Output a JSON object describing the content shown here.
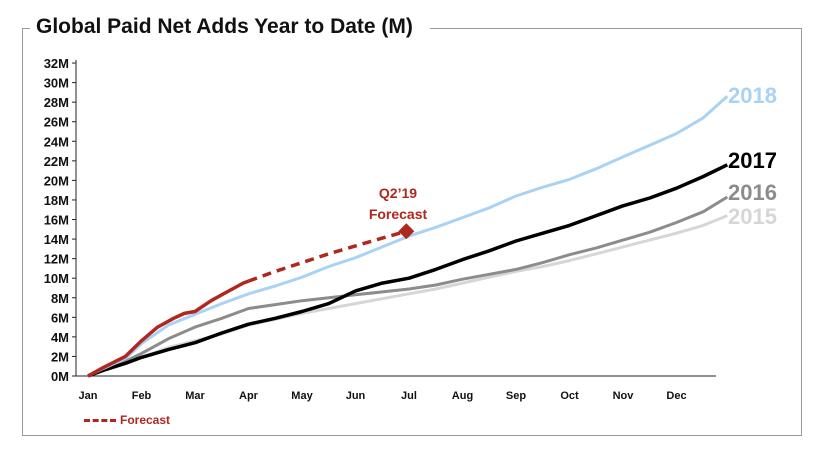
{
  "chart_data": {
    "type": "line",
    "title": "Global Paid Net Adds Year to Date (M)",
    "xlabel": "",
    "ylabel": "",
    "ylim": [
      0,
      32
    ],
    "y_ticks": [
      "0M",
      "2M",
      "4M",
      "6M",
      "8M",
      "10M",
      "12M",
      "14M",
      "16M",
      "18M",
      "20M",
      "22M",
      "24M",
      "26M",
      "28M",
      "30M",
      "32M"
    ],
    "x_ticks": [
      "Jan",
      "Feb",
      "Mar",
      "Apr",
      "May",
      "Jun",
      "Jul",
      "Aug",
      "Sep",
      "Oct",
      "Nov",
      "Dec"
    ],
    "grid": false,
    "colors": {
      "2018": "#a9d2f4",
      "2017": "#000000",
      "2016": "#8c8c8c",
      "2015": "#d6d6d6",
      "forecast": "#b0271f"
    },
    "series": [
      {
        "name": "2015",
        "x": [
          0,
          0.3,
          0.7,
          1.0,
          1.5,
          2.0,
          2.5,
          3.0,
          3.5,
          4.0,
          4.5,
          5.0,
          5.5,
          6.0,
          6.5,
          7.0,
          7.5,
          8.0,
          8.5,
          9.0,
          9.5,
          10.0,
          10.5,
          11.0,
          11.5,
          11.95
        ],
        "y": [
          0,
          0.6,
          1.3,
          1.9,
          2.9,
          3.6,
          4.3,
          5.2,
          5.8,
          6.4,
          6.9,
          7.4,
          7.9,
          8.4,
          8.9,
          9.5,
          10.1,
          10.7,
          11.2,
          11.8,
          12.5,
          13.2,
          13.9,
          14.6,
          15.4,
          16.4
        ]
      },
      {
        "name": "2016",
        "x": [
          0,
          0.3,
          0.7,
          1.0,
          1.5,
          2.0,
          2.5,
          3.0,
          3.5,
          4.0,
          4.5,
          5.0,
          5.5,
          6.0,
          6.5,
          7.0,
          7.5,
          8.0,
          8.5,
          9.0,
          9.5,
          10.0,
          10.5,
          11.0,
          11.5,
          11.95
        ],
        "y": [
          0,
          0.8,
          1.5,
          2.3,
          3.8,
          5.0,
          5.9,
          6.9,
          7.3,
          7.7,
          8.0,
          8.3,
          8.6,
          8.9,
          9.3,
          9.9,
          10.4,
          10.9,
          11.6,
          12.4,
          13.1,
          13.9,
          14.7,
          15.7,
          16.8,
          18.3
        ]
      },
      {
        "name": "2017",
        "x": [
          0,
          0.3,
          0.7,
          1.0,
          1.5,
          2.0,
          2.5,
          3.0,
          3.5,
          4.0,
          4.5,
          5.0,
          5.5,
          6.0,
          6.5,
          7.0,
          7.5,
          8.0,
          8.5,
          9.0,
          9.5,
          10.0,
          10.5,
          11.0,
          11.5,
          11.95
        ],
        "y": [
          0,
          0.6,
          1.3,
          1.9,
          2.7,
          3.4,
          4.4,
          5.3,
          5.9,
          6.6,
          7.4,
          8.7,
          9.5,
          10.0,
          10.9,
          11.9,
          12.8,
          13.8,
          14.6,
          15.4,
          16.4,
          17.4,
          18.2,
          19.2,
          20.4,
          21.6
        ]
      },
      {
        "name": "2018",
        "x": [
          0,
          0.3,
          0.7,
          1.0,
          1.5,
          2.0,
          2.5,
          3.0,
          3.5,
          4.0,
          4.5,
          5.0,
          5.5,
          6.0,
          6.5,
          7.0,
          7.5,
          8.0,
          8.5,
          9.0,
          9.5,
          10.0,
          10.5,
          11.0,
          11.5,
          11.95
        ],
        "y": [
          0,
          0.8,
          1.8,
          3.3,
          5.2,
          6.3,
          7.4,
          8.4,
          9.2,
          10.1,
          11.2,
          12.1,
          13.2,
          14.3,
          15.2,
          16.2,
          17.2,
          18.4,
          19.3,
          20.1,
          21.2,
          22.4,
          23.6,
          24.8,
          26.4,
          28.6
        ]
      },
      {
        "name": "2019",
        "x": [
          0,
          0.3,
          0.7,
          1.0,
          1.3,
          1.6,
          1.8,
          2.0,
          2.3,
          2.6,
          2.9,
          3.0
        ],
        "y": [
          0,
          0.9,
          2.0,
          3.6,
          5.0,
          5.9,
          6.4,
          6.6,
          7.7,
          8.6,
          9.5,
          9.7
        ]
      },
      {
        "name": "Forecast",
        "x": [
          3.0,
          3.5,
          4.0,
          4.5,
          5.0,
          5.5,
          5.95
        ],
        "y": [
          9.7,
          10.7,
          11.6,
          12.5,
          13.3,
          14.1,
          14.8
        ]
      }
    ],
    "end_labels": [
      "2018",
      "2017",
      "2016",
      "2015"
    ],
    "annotation": {
      "line1": "Q2’19",
      "line2": "Forecast",
      "x": 5.95,
      "y": 14.8
    },
    "legend": {
      "label": "Forecast",
      "position": "bottom-left"
    }
  }
}
